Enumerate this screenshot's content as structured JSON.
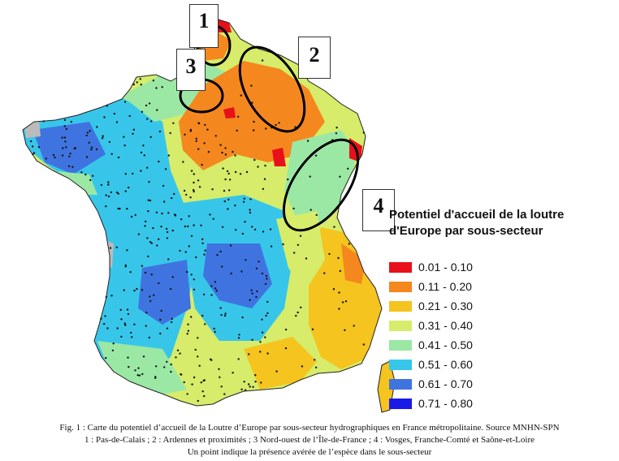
{
  "legend": {
    "title": "Potentiel d'accueil de la loutre d'Europe par sous-secteur",
    "items": [
      {
        "label": "0.01 - 0.10",
        "color": "#e8101a"
      },
      {
        "label": "0.11 - 0.20",
        "color": "#f5871f"
      },
      {
        "label": "0.21 - 0.30",
        "color": "#f5c41e"
      },
      {
        "label": "0.31 - 0.40",
        "color": "#d6ec6a"
      },
      {
        "label": "0.41 - 0.50",
        "color": "#9be8a4"
      },
      {
        "label": "0.51 - 0.60",
        "color": "#37c6ea"
      },
      {
        "label": "0.61 - 0.70",
        "color": "#3f74e0"
      },
      {
        "label": "0.71 - 0.80",
        "color": "#1a1ae6"
      }
    ]
  },
  "zones": [
    {
      "number": "1",
      "name": "Pas-de-Calais"
    },
    {
      "number": "2",
      "name": "Ardennes et proximités"
    },
    {
      "number": "3",
      "name": "Nord-ouest de l'Île-de-France"
    },
    {
      "number": "4",
      "name": "Vosges, Franche-Comté et Saône-et-Loire"
    }
  ],
  "caption": {
    "line1": "Fig. 1 : Carte du potentiel d’accueil de la Loutre d’Europe par sous-secteur hydrographiques en France métropolitaine. Source MNHN-SPN",
    "line2": "1 : Pas-de-Calais ; 2 : Ardennes et proximités ; 3 Nord-ouest de l’Île-de-France ; 4 : Vosges, Franche-Comté et Saône-et-Loire",
    "line3": "Un point indique la présence avérée de l’espèce dans le sous-secteur"
  }
}
